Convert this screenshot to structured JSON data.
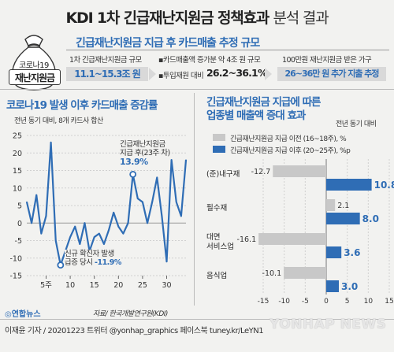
{
  "header": {
    "title": "KDI 1차 긴급재난지원금 정책효과",
    "subtitle": "분석 결과"
  },
  "badge": {
    "line1": "코로나19",
    "line2": "재난지원금"
  },
  "summary": {
    "heading": "긴급재난지원금 지급 후 카드매출 추정 규모",
    "col1_caption": "1차 긴급재난지원금 규모",
    "col1_value": "11.1~15.3조 원",
    "col2_caption1": "카드매출액 증가분 약 4조 원 규모",
    "col2_caption2": "투입재원 대비",
    "col2_value": "26.2~36.1%",
    "col3_caption": "100만원 재난지원금 받은 가구",
    "col3_value": "26~36만 원 추가 지출 추정"
  },
  "left_panel": {
    "heading": "코로나19 발생 이후 카드매출 증감률",
    "note": "전년 동기 대비, 8개 카드사 합산",
    "annot_top_l1": "긴급재난지원금",
    "annot_top_l2": "지급 후(23주 차)",
    "annot_top_value": "13.9%",
    "annot_bot_l1": "신규 확진자 발생",
    "annot_bot_l2": "급증 당시",
    "annot_bot_value": "-11.9%"
  },
  "right_panel": {
    "heading1": "긴급재난지원금 지급에 따른",
    "heading2": "업종별 매출액 증대 효과",
    "note": "전년 동기 대비",
    "legend_before": "긴급재난지원금 지급 이전 (16~18주), %",
    "legend_after": "긴급재난지원금 지급 이후 (20~25주), %p"
  },
  "footer": {
    "logo": "연합뉴스",
    "source": "자료/ 한국개발연구원(KDI)",
    "credit": "이재윤 기자 / 20201223  트위터 @yonhap_graphics  페이스북 tuney.kr/LeYN1",
    "watermark": "YONHAP NEWS"
  },
  "colors": {
    "blue": "#2f6db5",
    "gray": "#c8c8c8",
    "line": "#2f6db5",
    "bg": "#f2f2f0"
  },
  "chart_data": [
    {
      "type": "line",
      "title": "코로나19 발생 이후 카드매출 증감률",
      "x": [
        1,
        2,
        3,
        4,
        5,
        6,
        7,
        8,
        9,
        10,
        11,
        12,
        13,
        14,
        15,
        16,
        17,
        18,
        19,
        20,
        21,
        22,
        23,
        24,
        25,
        26,
        27,
        28,
        29,
        30,
        31,
        32,
        33,
        34
      ],
      "xticks": [
        5,
        10,
        15,
        20,
        25,
        30
      ],
      "xtick_labels": [
        "5주",
        "10",
        "15",
        "20",
        "25",
        "30"
      ],
      "ylim": [
        -15,
        25
      ],
      "yticks": [
        -15,
        -10,
        -5,
        0,
        5,
        10,
        15,
        20,
        25
      ],
      "series": [
        {
          "values": [
            6,
            0,
            8,
            -3,
            2,
            23,
            -5,
            -12,
            -8,
            -4,
            -1,
            -6,
            0,
            -8,
            -4,
            -3,
            -6,
            -2,
            3,
            -1,
            -3,
            0,
            13.9,
            7,
            6,
            0,
            6,
            13,
            2,
            -11,
            18,
            6,
            2,
            18
          ]
        }
      ]
    },
    {
      "type": "bar",
      "title": "긴급재난지원금 지급에 따른 업종별 매출액 증대 효과",
      "categories": [
        "(준)내구재",
        "필수재",
        "대면 서비스업",
        "음식업"
      ],
      "xlim": [
        -15,
        15
      ],
      "xticks": [
        -15,
        -10,
        -5,
        0,
        5,
        10,
        15
      ],
      "series": [
        {
          "name": "긴급재난지원금 지급 이전 (16~18주), %",
          "values": [
            -12.7,
            2.1,
            -16.1,
            -10.1
          ]
        },
        {
          "name": "긴급재난지원금 지급 이후 (20~25주), %p",
          "values": [
            10.8,
            8.0,
            3.6,
            3.0
          ]
        }
      ],
      "value_labels": {
        "before": [
          "-12.7",
          "2.1",
          "-16.1",
          "-10.1"
        ],
        "after": [
          "10.8",
          "8.0",
          "3.6",
          "3.0"
        ]
      }
    }
  ]
}
